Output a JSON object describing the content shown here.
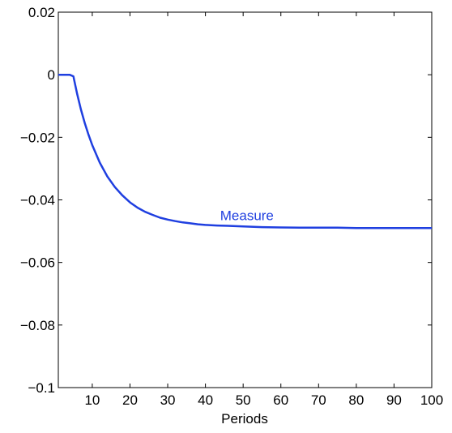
{
  "chart_data": {
    "type": "line",
    "title": "",
    "xlabel": "Periods",
    "ylabel": "",
    "xlim": [
      1,
      100
    ],
    "ylim": [
      -0.1,
      0.02
    ],
    "x_ticks": [
      10,
      20,
      30,
      40,
      50,
      60,
      70,
      80,
      90,
      100
    ],
    "y_ticks": [
      0.02,
      0,
      -0.02,
      -0.04,
      -0.06,
      -0.08,
      -0.1
    ],
    "x_tick_labels": [
      "10",
      "20",
      "30",
      "40",
      "50",
      "60",
      "70",
      "80",
      "90",
      "100"
    ],
    "y_tick_labels": [
      "0.02",
      "0",
      "−0.02",
      "−0.04",
      "−0.06",
      "−0.08",
      "−0.1"
    ],
    "grid": false,
    "legend": "none",
    "annotations": [
      {
        "text": "Measure",
        "x": 51,
        "y": -0.0465,
        "color": "#1f3fe0"
      }
    ],
    "series": [
      {
        "name": "Measure",
        "color": "#1f3fe0",
        "x": [
          1,
          2,
          3,
          4,
          5,
          6,
          7,
          8,
          9,
          10,
          12,
          14,
          16,
          18,
          20,
          22,
          24,
          26,
          28,
          30,
          32,
          34,
          36,
          38,
          40,
          43,
          46,
          50,
          55,
          60,
          65,
          70,
          75,
          80,
          85,
          90,
          95,
          100
        ],
        "values": [
          0,
          0,
          0,
          0,
          -0.0005,
          -0.0062,
          -0.0111,
          -0.0154,
          -0.0192,
          -0.0225,
          -0.0281,
          -0.0325,
          -0.0359,
          -0.0386,
          -0.0408,
          -0.0425,
          -0.0438,
          -0.0448,
          -0.0457,
          -0.0463,
          -0.0468,
          -0.0472,
          -0.0475,
          -0.0478,
          -0.048,
          -0.0482,
          -0.0483,
          -0.0485,
          -0.0487,
          -0.0488,
          -0.0489,
          -0.0489,
          -0.0489,
          -0.049,
          -0.049,
          -0.049,
          -0.049,
          -0.049
        ]
      }
    ]
  }
}
